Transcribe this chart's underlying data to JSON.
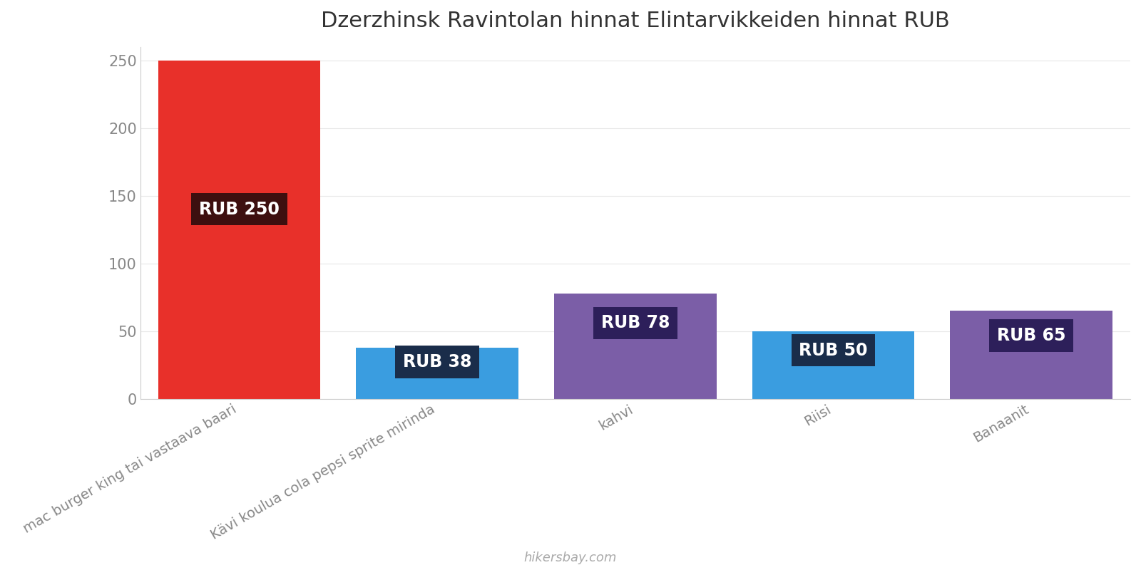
{
  "title": "Dzerzhinsk Ravintolan hinnat Elintarvikkeiden hinnat RUB",
  "categories": [
    "mac burger king tai vastaava baari",
    "Kävi koulua cola pepsi sprite mirinda",
    "kahvi",
    "Riisi",
    "Banaanit"
  ],
  "values": [
    250,
    38,
    78,
    50,
    65
  ],
  "bar_colors": [
    "#e8302a",
    "#3a9de0",
    "#7b5ea7",
    "#3a9de0",
    "#7b5ea7"
  ],
  "label_bg_colors": [
    "#3d0f0f",
    "#1a2d4a",
    "#2d1f5a",
    "#1a2d4a",
    "#2d1f5a"
  ],
  "labels": [
    "RUB 250",
    "RUB 38",
    "RUB 78",
    "RUB 50",
    "RUB 65"
  ],
  "ylim": [
    0,
    260
  ],
  "yticks": [
    0,
    50,
    100,
    150,
    200,
    250
  ],
  "title_fontsize": 22,
  "label_fontsize": 17,
  "tick_fontsize": 15,
  "xlabel_fontsize": 14,
  "background_color": "#ffffff",
  "watermark": "hikersbay.com",
  "watermark_color": "#aaaaaa"
}
